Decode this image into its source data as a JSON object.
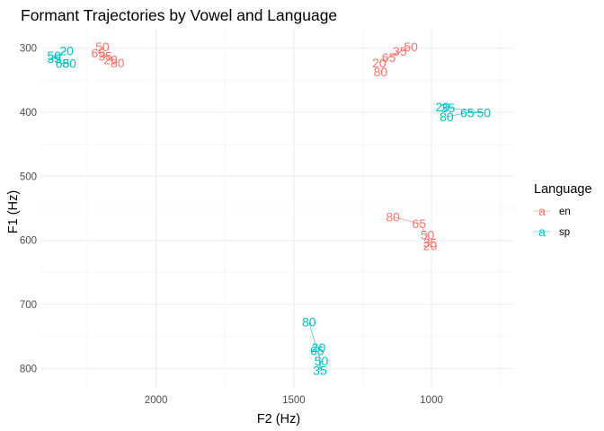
{
  "chart_data": {
    "type": "line",
    "title": "Formant Trajectories by Vowel and Language",
    "xlabel": "F2 (Hz)",
    "ylabel": "F1 (Hz)",
    "x_reversed": true,
    "y_reversed": true,
    "xlim": [
      2420,
      700
    ],
    "ylim": [
      270,
      830
    ],
    "x_ticks": [
      2000,
      1500,
      1000
    ],
    "y_ticks": [
      300,
      400,
      500,
      600,
      700,
      800
    ],
    "grid": true,
    "legend": {
      "title": "Language",
      "position": "right",
      "key_glyph": "a",
      "entries": [
        {
          "label": "en",
          "color": "#F8766D"
        },
        {
          "label": "sp",
          "color": "#00BFC4"
        }
      ]
    },
    "series": [
      {
        "name": "en",
        "color": "#F8766D",
        "points": [
          {
            "label": "20",
            "f2": 2165,
            "f1": 318
          },
          {
            "label": "35",
            "f2": 2185,
            "f1": 313
          },
          {
            "label": "50",
            "f2": 2195,
            "f1": 298
          },
          {
            "label": "65",
            "f2": 2210,
            "f1": 308
          },
          {
            "label": "80",
            "f2": 2140,
            "f1": 323
          }
        ]
      },
      {
        "name": "en",
        "color": "#F8766D",
        "points": [
          {
            "label": "20",
            "f2": 1190,
            "f1": 323
          },
          {
            "label": "35",
            "f2": 1115,
            "f1": 305
          },
          {
            "label": "50",
            "f2": 1075,
            "f1": 298
          },
          {
            "label": "65",
            "f2": 1155,
            "f1": 315
          },
          {
            "label": "80",
            "f2": 1185,
            "f1": 337
          }
        ]
      },
      {
        "name": "en",
        "color": "#F8766D",
        "points": [
          {
            "label": "20",
            "f2": 1005,
            "f1": 608
          },
          {
            "label": "35",
            "f2": 1005,
            "f1": 604
          },
          {
            "label": "50",
            "f2": 1015,
            "f1": 591
          },
          {
            "label": "65",
            "f2": 1045,
            "f1": 574
          },
          {
            "label": "80",
            "f2": 1140,
            "f1": 563
          }
        ]
      },
      {
        "name": "sp",
        "color": "#00BFC4",
        "points": [
          {
            "label": "20",
            "f2": 2325,
            "f1": 304
          },
          {
            "label": "35",
            "f2": 2370,
            "f1": 316
          },
          {
            "label": "50",
            "f2": 2370,
            "f1": 312
          },
          {
            "label": "65",
            "f2": 2340,
            "f1": 324
          },
          {
            "label": "80",
            "f2": 2315,
            "f1": 324
          }
        ]
      },
      {
        "name": "sp",
        "color": "#00BFC4",
        "points": [
          {
            "label": "20",
            "f2": 960,
            "f1": 392
          },
          {
            "label": "35",
            "f2": 940,
            "f1": 393
          },
          {
            "label": "50",
            "f2": 810,
            "f1": 401
          },
          {
            "label": "65",
            "f2": 870,
            "f1": 401
          },
          {
            "label": "80",
            "f2": 945,
            "f1": 407
          }
        ]
      },
      {
        "name": "sp",
        "color": "#00BFC4",
        "points": [
          {
            "label": "20",
            "f2": 1410,
            "f1": 767
          },
          {
            "label": "35",
            "f2": 1405,
            "f1": 803
          },
          {
            "label": "50",
            "f2": 1400,
            "f1": 788
          },
          {
            "label": "65",
            "f2": 1415,
            "f1": 772
          },
          {
            "label": "80",
            "f2": 1445,
            "f1": 727
          }
        ]
      }
    ]
  }
}
